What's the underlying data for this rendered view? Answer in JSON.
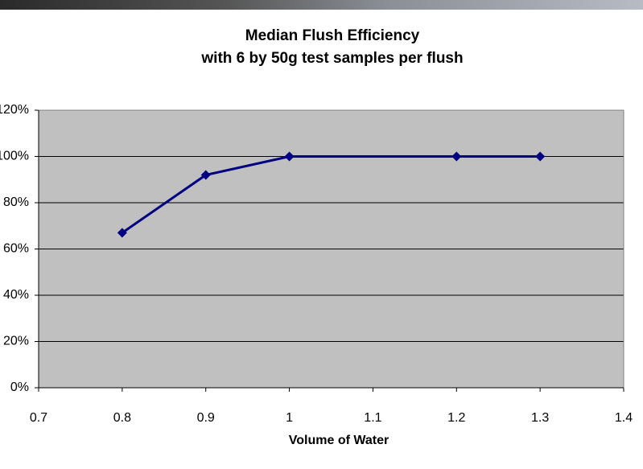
{
  "chart_data": {
    "type": "line",
    "title": "Median Flush Efficiency",
    "subtitle": "with 6 by 50g test samples per flush",
    "x_label": "Volume of Water",
    "series": [
      {
        "color": "#000080",
        "x": [
          0.8,
          0.9,
          1,
          1.2,
          1.3
        ],
        "values": [
          67,
          92,
          100,
          100,
          100
        ]
      }
    ],
    "xlim": [
      0.7,
      1.4
    ],
    "xticks": [
      0.7,
      0.8,
      0.9,
      1,
      1.1,
      1.2,
      1.3,
      1.4
    ],
    "ylim": [
      0,
      120
    ],
    "yticks": [
      {
        "value": 0,
        "label": "0%"
      },
      {
        "value": 20,
        "label": "20%"
      },
      {
        "value": 40,
        "label": "40%"
      },
      {
        "value": 60,
        "label": "60%"
      },
      {
        "value": 80,
        "label": "80%"
      },
      {
        "value": 100,
        "label": "100%"
      },
      {
        "value": 120,
        "label": "120%"
      }
    ],
    "grid": true,
    "plot_background": "#c0c0c0"
  }
}
